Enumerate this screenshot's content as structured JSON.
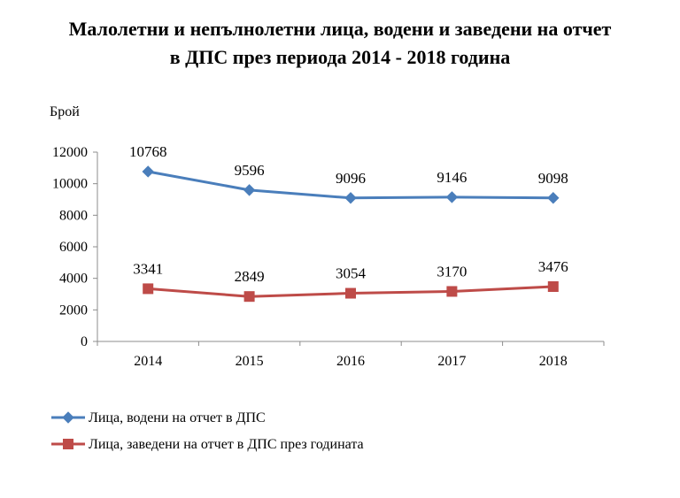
{
  "chart_data": {
    "type": "line",
    "title": "Малолетни и непълнолетни лица, водени и заведени на отчет в ДПС през периода 2014 - 2018 година",
    "title_lines": [
      "Малолетни и непълнолетни лица, водени и заведени на отчет",
      "в ДПС през периода 2014 - 2018 година"
    ],
    "ylabel": "Брой",
    "xlabel": "",
    "categories": [
      "2014",
      "2015",
      "2016",
      "2017",
      "2018"
    ],
    "ylim": [
      0,
      12000
    ],
    "yticks": [
      "0",
      "2000",
      "4000",
      "6000",
      "8000",
      "10000",
      "12000"
    ],
    "grid": false,
    "legend_position": "bottom-left",
    "series": [
      {
        "name": "Лица, водени на отчет в ДПС",
        "values": [
          10768,
          9596,
          9096,
          9146,
          9098
        ],
        "labels": [
          "10768",
          "9596",
          "9096",
          "9146",
          "9098"
        ],
        "color": "#4a7ebb",
        "marker": "diamond"
      },
      {
        "name": "Лица, заведени на отчет в ДПС през годината",
        "values": [
          3341,
          2849,
          3054,
          3170,
          3476
        ],
        "labels": [
          "3341",
          "2849",
          "3054",
          "3170",
          "3476"
        ],
        "color": "#be4b48",
        "marker": "square"
      }
    ]
  }
}
